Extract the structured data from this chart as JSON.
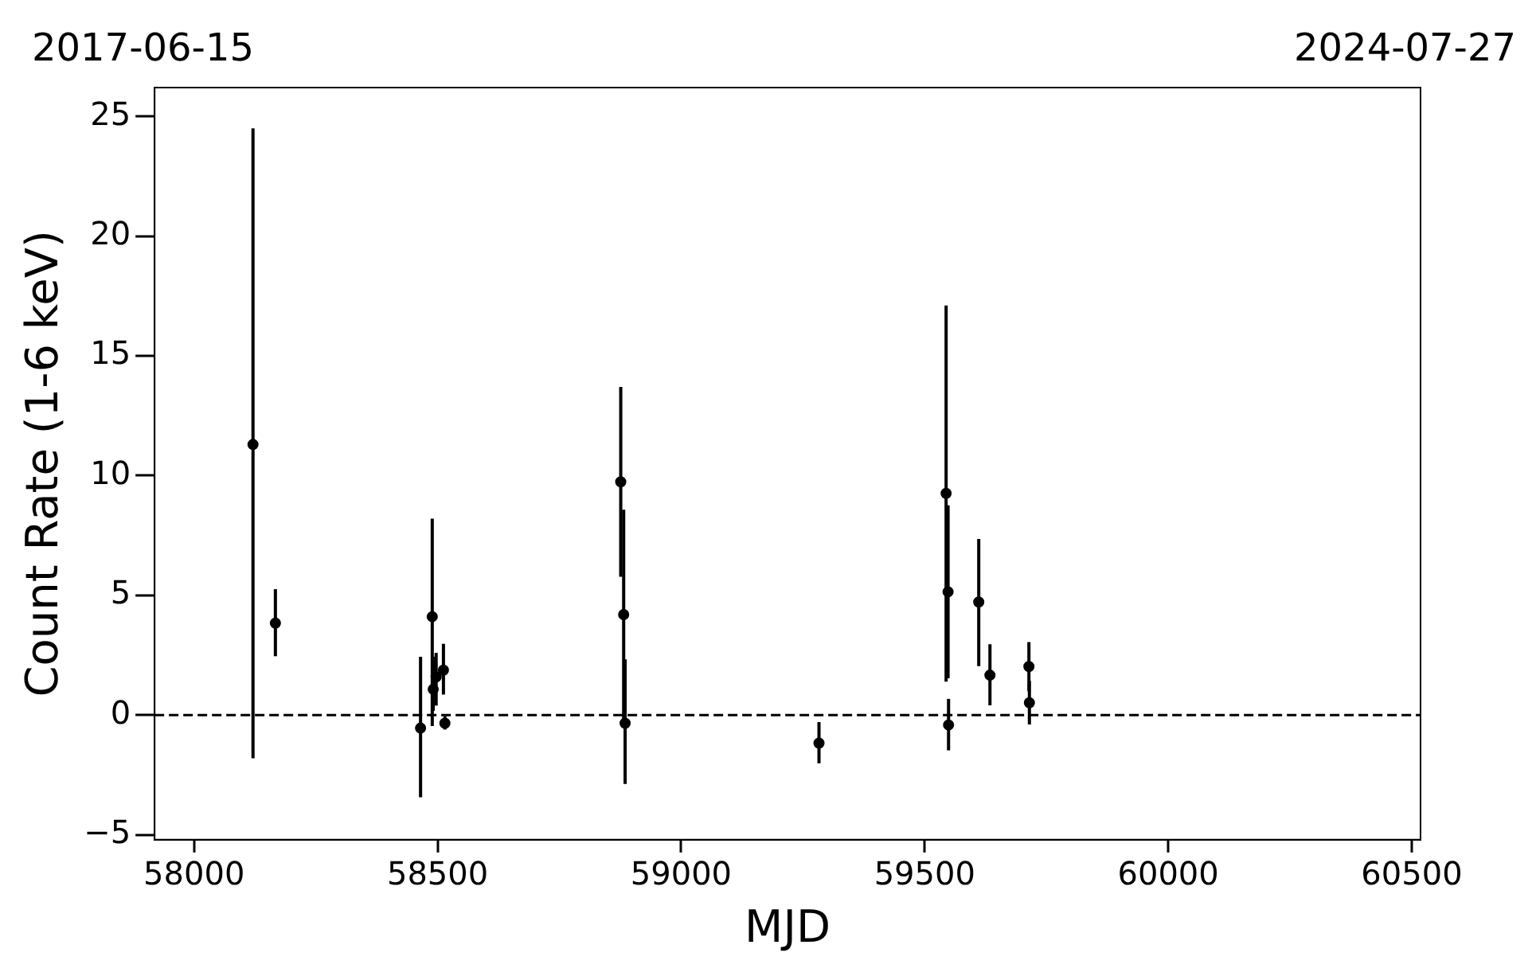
{
  "chart_data": {
    "type": "scatter",
    "xlabel": "MJD",
    "ylabel": "Count Rate (1-6 keV)",
    "x": [
      58121,
      58167,
      58465,
      58489,
      58491,
      58497,
      58512,
      58515,
      58876,
      58882,
      58885,
      59283,
      59544,
      59548,
      59549,
      59611,
      59634,
      59714,
      59715
    ],
    "series": [
      {
        "color": "#000000",
        "values": [
          11.3,
          3.84,
          -0.54,
          4.11,
          1.08,
          1.6,
          1.88,
          -0.34,
          9.74,
          4.2,
          -0.34,
          -1.17,
          9.26,
          5.15,
          -0.41,
          4.72,
          1.67,
          2.03,
          0.52
        ],
        "errors": [
          [
            -1.8,
            24.5
          ],
          [
            2.46,
            5.26
          ],
          [
            -3.43,
            2.44
          ],
          [
            -0.45,
            8.2
          ],
          [
            0.18,
            2.44
          ],
          [
            0.4,
            2.6
          ],
          [
            0.86,
            2.98
          ],
          [
            -0.6,
            -0.05
          ],
          [
            5.78,
            13.7
          ],
          [
            -0.18,
            8.58
          ],
          [
            -2.87,
            2.33
          ],
          [
            -2.01,
            -0.29
          ],
          [
            1.4,
            17.1
          ],
          [
            1.54,
            8.76
          ],
          [
            -1.47,
            0.68
          ],
          [
            2.05,
            7.36
          ],
          [
            0.41,
            2.96
          ],
          [
            1.0,
            3.05
          ],
          [
            -0.39,
            1.43
          ]
        ]
      }
    ],
    "xlim": [
      57919,
      60518
    ],
    "xticks": [
      58000,
      58500,
      59000,
      59500,
      60000,
      60500
    ],
    "annotations": [
      "2017-06-15",
      "2024-07-27"
    ],
    "ylim": [
      -5.2,
      26.2
    ],
    "yticks": [
      {
        "value": -5,
        "label": "−5"
      },
      0,
      5,
      10,
      15,
      20,
      25
    ],
    "ref_lines": [
      {
        "axis": "y",
        "value": 0,
        "line_style": "dashed",
        "color": "#000000"
      }
    ],
    "marker": "circle",
    "grid": false,
    "legend": false
  }
}
